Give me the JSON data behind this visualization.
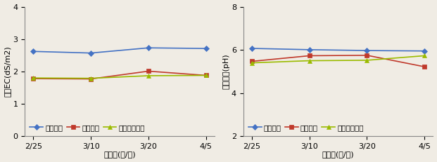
{
  "x_labels": [
    "2/25",
    "3/10",
    "3/20",
    "4/5"
  ],
  "ec": {
    "ylabel": "배지EC(dS/m2)",
    "xlabel": "조사일(월/일)",
    "ylim": [
      0,
      4
    ],
    "yticks": [
      0,
      1,
      2,
      3,
      4
    ],
    "series": {
      "점적관수": {
        "values": [
          2.62,
          2.57,
          2.73,
          2.71
        ],
        "color": "#4472C4",
        "marker": "D"
      },
      "저면관수": {
        "values": [
          1.78,
          1.77,
          2.01,
          1.88
        ],
        "color": "#C0392B",
        "marker": "s"
      },
      "에브앤플로우": {
        "values": [
          1.8,
          1.79,
          1.87,
          1.88
        ],
        "color": "#9BBB00",
        "marker": "^"
      }
    },
    "series_order": [
      "점적관수",
      "저면관수",
      "에브앤플로우"
    ]
  },
  "ph": {
    "ylabel": "배지산도(pH)",
    "xlabel": "조사일(월/일)",
    "ylim": [
      2,
      8
    ],
    "yticks": [
      2,
      4,
      6,
      8
    ],
    "series": {
      "점적관수": {
        "values": [
          6.07,
          6.01,
          5.97,
          5.95
        ],
        "color": "#4472C4",
        "marker": "D"
      },
      "저면관수": {
        "values": [
          5.47,
          5.73,
          5.75,
          5.22
        ],
        "color": "#C0392B",
        "marker": "s"
      },
      "에브앤플로우": {
        "values": [
          5.4,
          5.5,
          5.52,
          5.73
        ],
        "color": "#9BBB00",
        "marker": "^"
      }
    },
    "series_order": [
      "점적관수",
      "저면관수",
      "에브앤플로우"
    ]
  },
  "background_color": "#f0ece4",
  "plot_bg_color": "#f0ece4",
  "fontsize": 8,
  "legend_fontsize": 7.5
}
